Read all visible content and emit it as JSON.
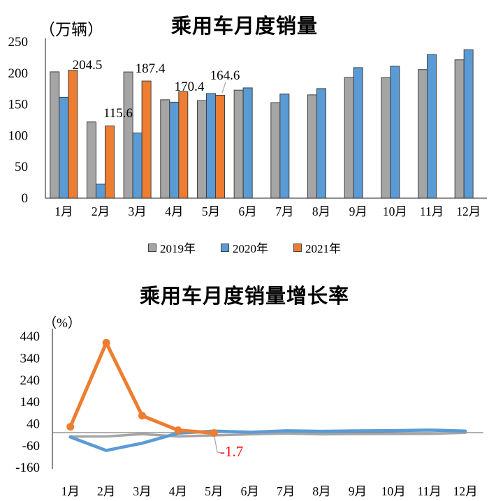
{
  "colors": {
    "gray": "#A5A5A5",
    "blue": "#5B9BD5",
    "orange": "#ED7D31",
    "axis": "#4a4a4a",
    "zero_line": "#808080",
    "leader": "#A6A6A6",
    "annotation_red": "#FF0000",
    "bar_outline": "#404040"
  },
  "chart_data": [
    {
      "type": "bar",
      "title": "乘用车月度销量",
      "unit_label": "（万辆）",
      "categories": [
        "1月",
        "2月",
        "3月",
        "4月",
        "5月",
        "6月",
        "7月",
        "8月",
        "9月",
        "10月",
        "11月",
        "12月"
      ],
      "y_ticks": [
        0,
        50,
        100,
        150,
        200,
        250
      ],
      "ylim": [
        0,
        250
      ],
      "gridlines": false,
      "legend_position": "bottom",
      "series": [
        {
          "name": "2019年",
          "color": "#A5A5A5",
          "values": [
            202.1,
            121.9,
            201.9,
            157.5,
            156.1,
            172.8,
            152.8,
            165.3,
            193.1,
            192.8,
            205.7,
            221.3
          ]
        },
        {
          "name": "2020年",
          "color": "#5B9BD5",
          "values": [
            161.4,
            22.4,
            104.3,
            153.6,
            167.4,
            176.4,
            166.5,
            175.3,
            208.8,
            211.0,
            229.7,
            237.5
          ]
        },
        {
          "name": "2021年",
          "color": "#ED7D31",
          "values": [
            204.5,
            115.6,
            187.4,
            170.4,
            164.6,
            null,
            null,
            null,
            null,
            null,
            null,
            null
          ]
        }
      ],
      "data_labels": [
        "204.5",
        "115.6",
        "187.4",
        "170.4",
        "164.6"
      ]
    },
    {
      "type": "line",
      "title": "乘用车月度销量增长率",
      "unit_label": "（%）",
      "categories": [
        "1月",
        "2月",
        "3月",
        "4月",
        "5月",
        "6月",
        "7月",
        "8月",
        "9月",
        "10月",
        "11月",
        "12月"
      ],
      "y_ticks": [
        440,
        340,
        240,
        140,
        40,
        -60,
        -160
      ],
      "ylim": [
        -160,
        440
      ],
      "gridlines": false,
      "series": [
        {
          "name": "2019年",
          "color": "#A5A5A5",
          "markers": false,
          "values": [
            -17.7,
            -17.4,
            -6.9,
            -17.7,
            -12.5,
            -7.8,
            -3.9,
            -7.7,
            -6.3,
            -5.8,
            -5.4,
            -0.9
          ]
        },
        {
          "name": "2020年",
          "color": "#5B9BD5",
          "markers": false,
          "values": [
            -20.2,
            -81.7,
            -48.4,
            -2.6,
            7.0,
            1.8,
            8.5,
            6.0,
            8.1,
            9.3,
            11.6,
            7.2
          ]
        },
        {
          "name": "2021年",
          "color": "#ED7D31",
          "markers": true,
          "values": [
            26.8,
            410.9,
            77.4,
            10.8,
            -1.7,
            null,
            null,
            null,
            null,
            null,
            null,
            null
          ]
        }
      ],
      "annotation": {
        "text": "-1.7",
        "color": "#FF0000"
      }
    }
  ]
}
